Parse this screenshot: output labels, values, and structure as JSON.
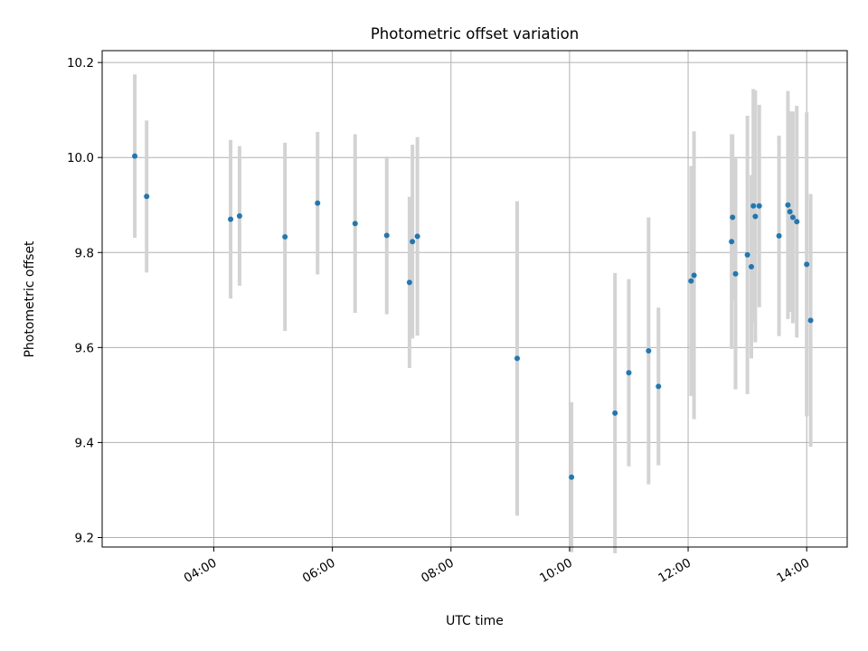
{
  "chart_data": {
    "type": "scatter",
    "title": "Photometric offset variation",
    "xlabel": "UTC time",
    "ylabel": "Photometric offset",
    "x_axis_type": "time",
    "xlim": [
      "02:07",
      "14:41"
    ],
    "ylim": [
      9.18,
      10.225
    ],
    "x_ticks": [
      "04:00",
      "06:00",
      "08:00",
      "10:00",
      "12:00",
      "14:00"
    ],
    "y_ticks": [
      "9.2",
      "9.4",
      "9.6",
      "9.8",
      "10.0",
      "10.2"
    ],
    "grid": true,
    "marker_color": "#1f77b4",
    "errorbar_color": "#d3d3d3",
    "points": [
      {
        "t": "02:40",
        "y": 10.003,
        "err": 0.172
      },
      {
        "t": "02:52",
        "y": 9.918,
        "err": 0.16
      },
      {
        "t": "04:17",
        "y": 9.87,
        "err": 0.167
      },
      {
        "t": "04:26",
        "y": 9.877,
        "err": 0.147
      },
      {
        "t": "05:12",
        "y": 9.833,
        "err": 0.198
      },
      {
        "t": "05:45",
        "y": 9.904,
        "err": 0.15
      },
      {
        "t": "06:23",
        "y": 9.861,
        "err": 0.188
      },
      {
        "t": "06:55",
        "y": 9.836,
        "err": 0.166
      },
      {
        "t": "07:18",
        "y": 9.737,
        "err": 0.18
      },
      {
        "t": "07:21",
        "y": 9.823,
        "err": 0.204
      },
      {
        "t": "07:26",
        "y": 9.834,
        "err": 0.209
      },
      {
        "t": "09:07",
        "y": 9.577,
        "err": 0.331
      },
      {
        "t": "10:02",
        "y": 9.327,
        "err": 0.158
      },
      {
        "t": "10:46",
        "y": 9.462,
        "err": 0.295
      },
      {
        "t": "11:00",
        "y": 9.547,
        "err": 0.197
      },
      {
        "t": "11:20",
        "y": 9.593,
        "err": 0.281
      },
      {
        "t": "11:30",
        "y": 9.518,
        "err": 0.166
      },
      {
        "t": "12:03",
        "y": 9.74,
        "err": 0.242
      },
      {
        "t": "12:06",
        "y": 9.752,
        "err": 0.303
      },
      {
        "t": "12:44",
        "y": 9.823,
        "err": 0.226
      },
      {
        "t": "12:45",
        "y": 9.874,
        "err": 0.175
      },
      {
        "t": "12:48",
        "y": 9.755,
        "err": 0.243
      },
      {
        "t": "13:00",
        "y": 9.795,
        "err": 0.293
      },
      {
        "t": "13:04",
        "y": 9.77,
        "err": 0.193
      },
      {
        "t": "13:06",
        "y": 9.898,
        "err": 0.246
      },
      {
        "t": "13:08",
        "y": 9.876,
        "err": 0.265
      },
      {
        "t": "13:12",
        "y": 9.898,
        "err": 0.213
      },
      {
        "t": "13:32",
        "y": 9.835,
        "err": 0.211
      },
      {
        "t": "13:41",
        "y": 9.9,
        "err": 0.24
      },
      {
        "t": "13:43",
        "y": 9.886,
        "err": 0.211
      },
      {
        "t": "13:46",
        "y": 9.874,
        "err": 0.223
      },
      {
        "t": "13:50",
        "y": 9.865,
        "err": 0.244
      },
      {
        "t": "14:00",
        "y": 9.775,
        "err": 0.32
      },
      {
        "t": "14:04",
        "y": 9.657,
        "err": 0.266
      }
    ]
  }
}
